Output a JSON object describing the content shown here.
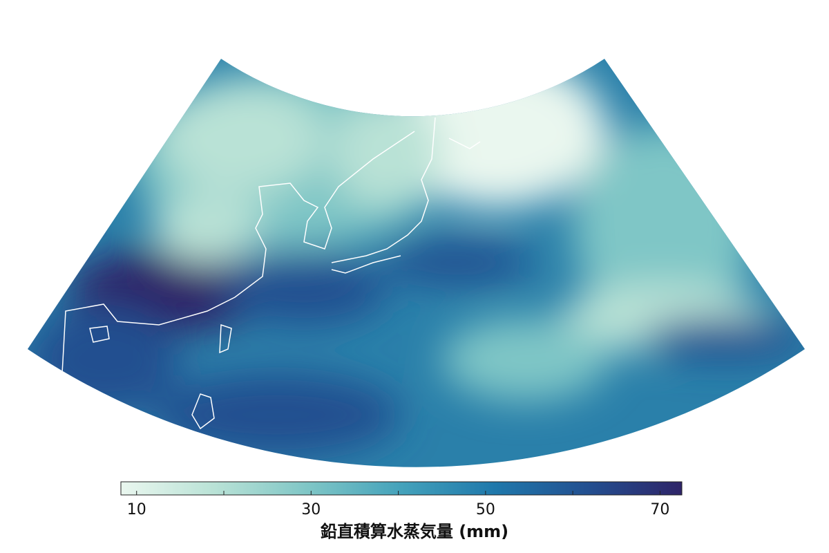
{
  "colorbar": {
    "label": "鉛直積算水蒸気量 (mm)",
    "range": [
      8.2,
      72.5
    ],
    "ticks": [
      10,
      30,
      50,
      70
    ],
    "minor_ticks": [
      20,
      40,
      60
    ],
    "colors": [
      "#eaf7ef",
      "#b9e2d6",
      "#7fc6c6",
      "#44a2bb",
      "#1f78ab",
      "#234f90",
      "#2e2468"
    ]
  }
}
